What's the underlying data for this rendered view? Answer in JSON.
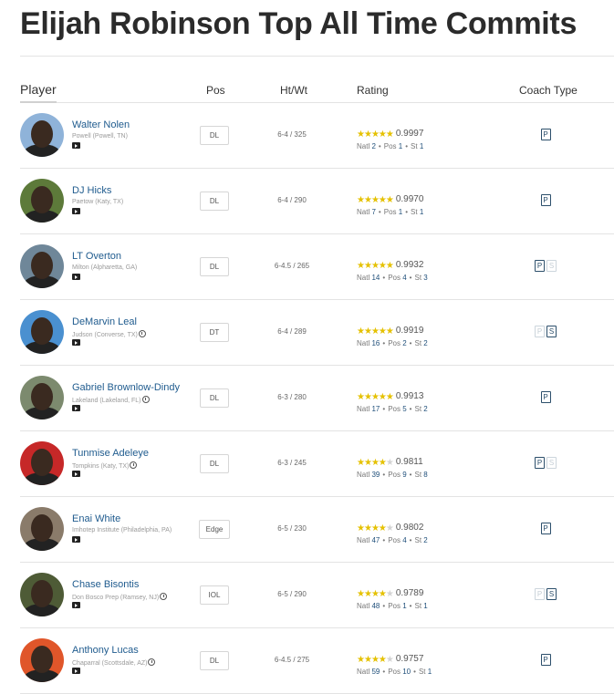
{
  "page": {
    "title": "Elijah Robinson Top All Time Commits"
  },
  "table": {
    "headers": {
      "player": "Player",
      "pos": "Pos",
      "htwt": "Ht/Wt",
      "rating": "Rating",
      "coach_type": "Coach Type"
    },
    "rank_labels": {
      "natl": "Natl",
      "pos": "Pos",
      "st": "St"
    },
    "rows": [
      {
        "name": "Walter Nolen",
        "school": "Powell (Powell, TN)",
        "clock": false,
        "pos": "DL",
        "htwt": "6-4 / 325",
        "stars": 5,
        "score": "0.9997",
        "natl": "2",
        "pos_rank": "1",
        "st": "1",
        "coach": [
          {
            "label": "P",
            "active": true
          }
        ],
        "avatar_bg": "#8fb3d9"
      },
      {
        "name": "DJ Hicks",
        "school": "Paetow (Katy, TX)",
        "clock": false,
        "pos": "DL",
        "htwt": "6-4 / 290",
        "stars": 5,
        "score": "0.9970",
        "natl": "7",
        "pos_rank": "1",
        "st": "1",
        "coach": [
          {
            "label": "P",
            "active": true
          }
        ],
        "avatar_bg": "#5d7a3a"
      },
      {
        "name": "LT Overton",
        "school": "Milton (Alpharetta, GA)",
        "clock": false,
        "pos": "DL",
        "htwt": "6-4.5 / 265",
        "stars": 5,
        "score": "0.9932",
        "natl": "14",
        "pos_rank": "4",
        "st": "3",
        "coach": [
          {
            "label": "P",
            "active": true
          },
          {
            "label": "S",
            "active": false
          }
        ],
        "avatar_bg": "#6f8799"
      },
      {
        "name": "DeMarvin Leal",
        "school": "Judson (Converse, TX)",
        "clock": true,
        "pos": "DT",
        "htwt": "6-4 / 289",
        "stars": 5,
        "score": "0.9919",
        "natl": "16",
        "pos_rank": "2",
        "st": "2",
        "coach": [
          {
            "label": "P",
            "active": false
          },
          {
            "label": "S",
            "active": true
          }
        ],
        "avatar_bg": "#4a90d0"
      },
      {
        "name": "Gabriel Brownlow-Dindy",
        "school": "Lakeland (Lakeland, FL)",
        "clock": true,
        "pos": "DL",
        "htwt": "6-3 / 280",
        "stars": 5,
        "score": "0.9913",
        "natl": "17",
        "pos_rank": "5",
        "st": "2",
        "coach": [
          {
            "label": "P",
            "active": true
          }
        ],
        "avatar_bg": "#7c8a6e"
      },
      {
        "name": "Tunmise Adeleye",
        "school": "Tompkins (Katy, TX)",
        "clock": true,
        "pos": "DL",
        "htwt": "6-3 / 245",
        "stars": 4,
        "score": "0.9811",
        "natl": "39",
        "pos_rank": "9",
        "st": "8",
        "coach": [
          {
            "label": "P",
            "active": true
          },
          {
            "label": "S",
            "active": false
          }
        ],
        "avatar_bg": "#c62828"
      },
      {
        "name": "Enai White",
        "school": "Imhotep Institute (Philadelphia, PA)",
        "clock": false,
        "pos": "Edge",
        "htwt": "6-5 / 230",
        "stars": 4,
        "score": "0.9802",
        "natl": "47",
        "pos_rank": "4",
        "st": "2",
        "coach": [
          {
            "label": "P",
            "active": true
          }
        ],
        "avatar_bg": "#8a7b6a"
      },
      {
        "name": "Chase Bisontis",
        "school": "Don Bosco Prep (Ramsey, NJ)",
        "clock": true,
        "pos": "IOL",
        "htwt": "6-5 / 290",
        "stars": 4,
        "score": "0.9789",
        "natl": "48",
        "pos_rank": "1",
        "st": "1",
        "coach": [
          {
            "label": "P",
            "active": false
          },
          {
            "label": "S",
            "active": true
          }
        ],
        "avatar_bg": "#4e5b36"
      },
      {
        "name": "Anthony Lucas",
        "school": "Chaparral (Scottsdale, AZ)",
        "clock": true,
        "pos": "DL",
        "htwt": "6-4.5 / 275",
        "stars": 4,
        "score": "0.9757",
        "natl": "59",
        "pos_rank": "10",
        "st": "1",
        "coach": [
          {
            "label": "P",
            "active": true
          }
        ],
        "avatar_bg": "#e0562a"
      }
    ]
  },
  "colors": {
    "star": "#e5c100",
    "link": "#1f5b8e",
    "coach_badge": "#2c4f6b"
  }
}
